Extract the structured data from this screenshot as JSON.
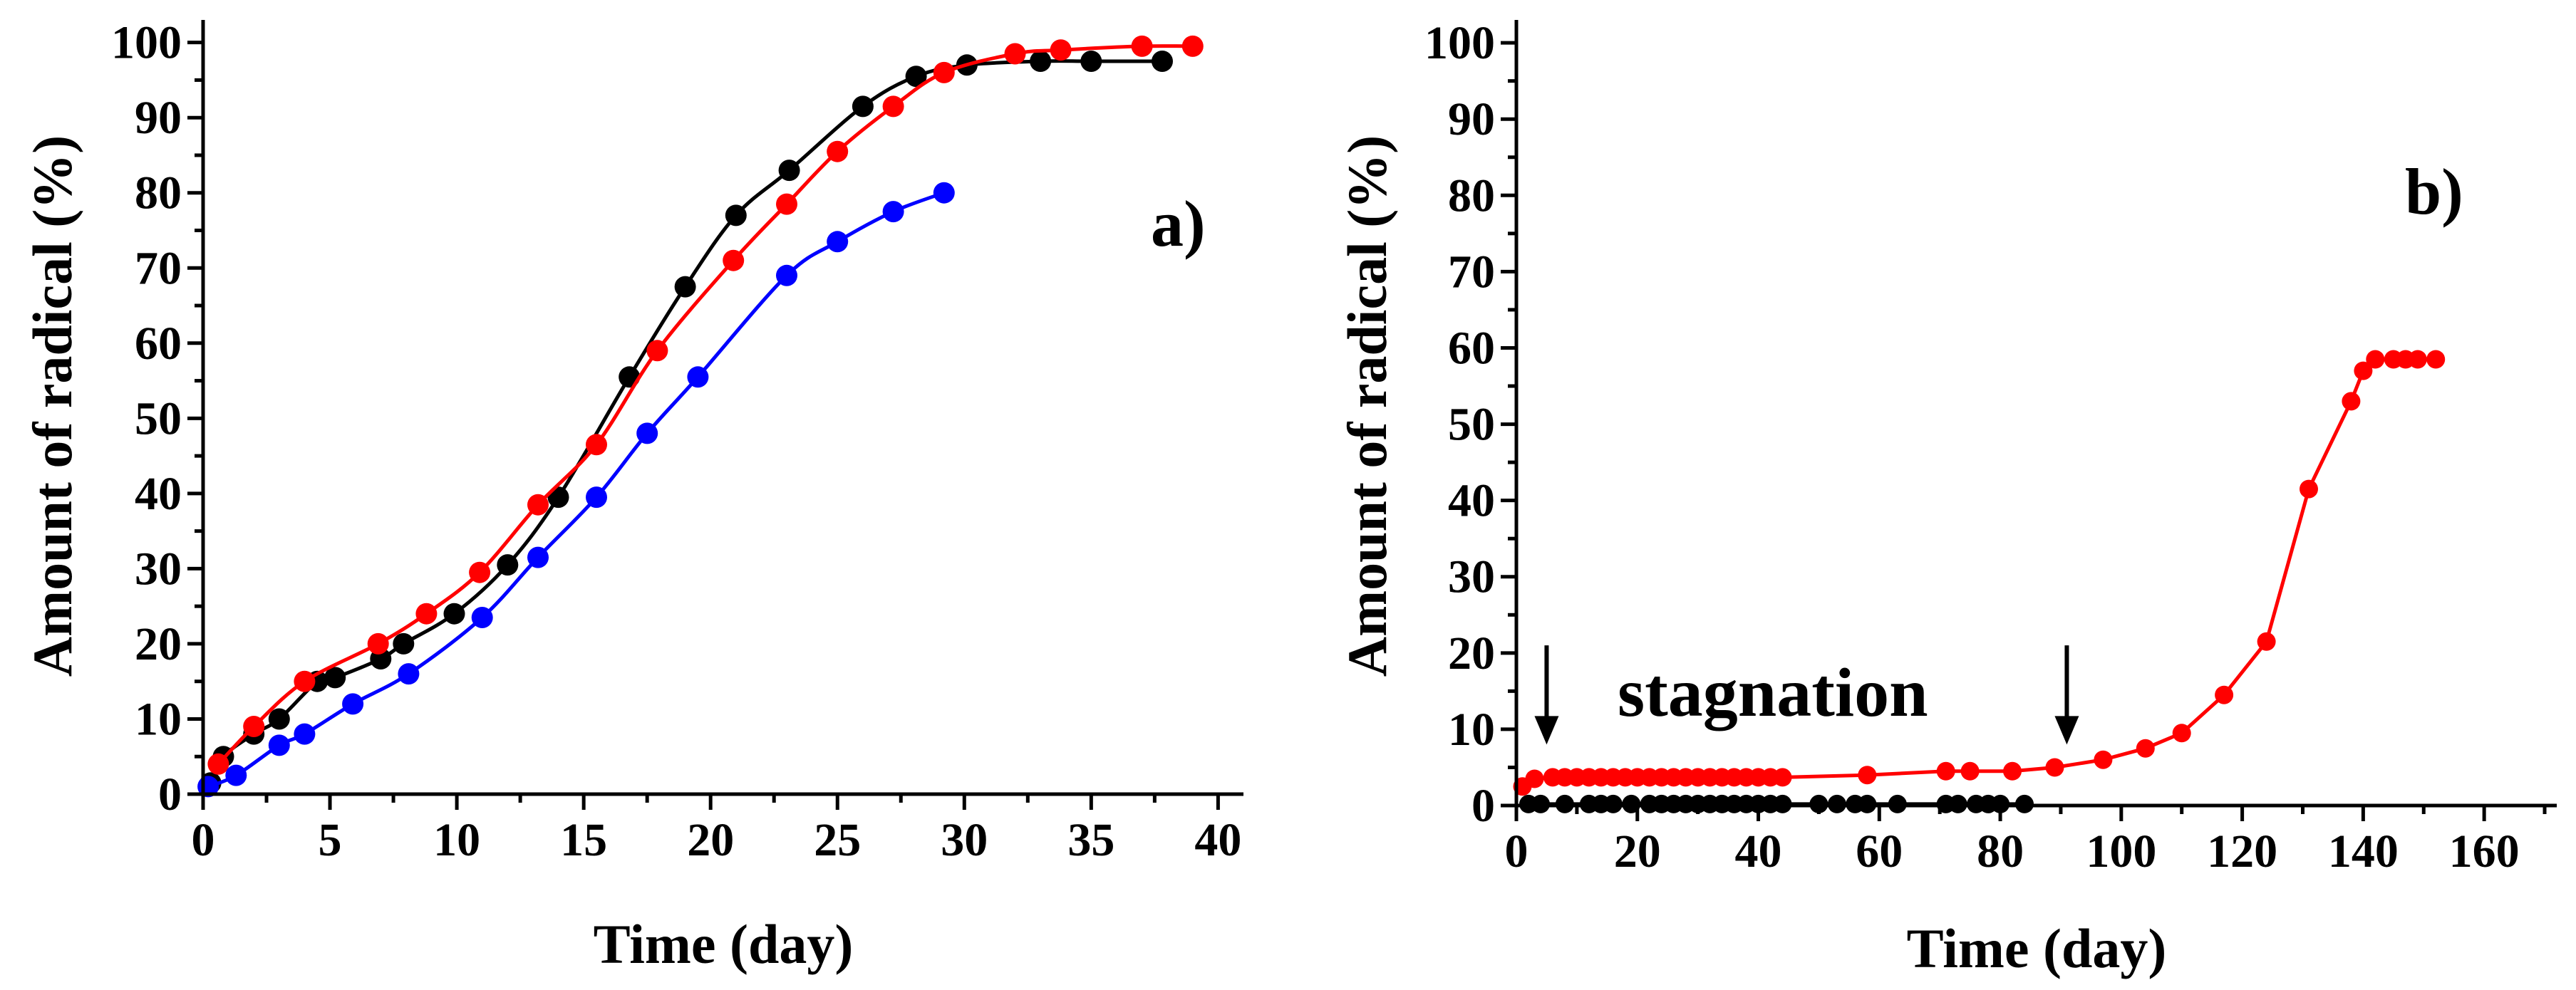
{
  "chart_data": [
    {
      "type": "line",
      "panel_label": "a)",
      "xlabel": "Time (day)",
      "ylabel": "Amount of radical (%)",
      "xlim": [
        0,
        41
      ],
      "ylim": [
        0,
        103
      ],
      "xticks": [
        0,
        5,
        10,
        15,
        20,
        25,
        30,
        35,
        40
      ],
      "yticks": [
        0,
        10,
        20,
        30,
        40,
        50,
        60,
        70,
        80,
        90,
        100
      ],
      "grid": false,
      "series": [
        {
          "name": "black",
          "color": "#000000",
          "x": [
            0.3,
            0.8,
            2.0,
            3.0,
            4.5,
            5.2,
            7.0,
            7.9,
            9.9,
            12.0,
            14.0,
            16.8,
            19.0,
            21.0,
            23.1,
            26.0,
            28.1,
            30.1,
            33.0,
            35.0,
            37.8
          ],
          "y": [
            1.5,
            5.0,
            8.0,
            10.0,
            15.0,
            15.5,
            18.0,
            20.0,
            24.0,
            30.5,
            39.5,
            55.5,
            67.5,
            77.0,
            83.0,
            91.5,
            95.5,
            97.0,
            97.5,
            97.5,
            97.5
          ]
        },
        {
          "name": "red",
          "color": "#ff0000",
          "x": [
            0.6,
            2.0,
            4.0,
            6.9,
            8.8,
            10.9,
            13.2,
            15.5,
            17.9,
            20.9,
            23.0,
            25.0,
            27.2,
            29.2,
            32.0,
            33.8,
            37.0,
            39.0
          ],
          "y": [
            4.0,
            9.0,
            15.0,
            20.0,
            24.0,
            29.5,
            38.5,
            46.5,
            59.0,
            71.0,
            78.5,
            85.5,
            91.5,
            96.0,
            98.5,
            99.0,
            99.5,
            99.5
          ]
        },
        {
          "name": "blue",
          "color": "#0000ff",
          "x": [
            0.2,
            1.3,
            3.0,
            4.0,
            5.9,
            8.1,
            11.0,
            13.2,
            15.5,
            17.5,
            19.5,
            23.0,
            25.0,
            27.2,
            29.2
          ],
          "y": [
            1.0,
            2.5,
            6.5,
            8.0,
            12.0,
            16.0,
            23.5,
            31.5,
            39.5,
            48.0,
            55.5,
            69.0,
            73.5,
            77.5,
            80.0
          ]
        }
      ]
    },
    {
      "type": "line",
      "panel_label": "b)",
      "xlabel": "Time (day)",
      "ylabel": "Amount of radical (%)",
      "xlim": [
        0,
        172
      ],
      "ylim": [
        0,
        103
      ],
      "xticks": [
        0,
        20,
        40,
        60,
        80,
        100,
        120,
        140,
        160
      ],
      "yticks": [
        0,
        10,
        20,
        30,
        40,
        50,
        60,
        70,
        80,
        90,
        100
      ],
      "grid": false,
      "annotations": [
        {
          "text": "stagnation",
          "x": 28,
          "y": 13
        }
      ],
      "arrows": [
        {
          "x": 5,
          "y_from": 21,
          "y_to": 8
        },
        {
          "x": 91,
          "y_from": 21,
          "y_to": 8
        }
      ],
      "series": [
        {
          "name": "red",
          "color": "#ff0000",
          "x": [
            1,
            3,
            6,
            8,
            10,
            12,
            14,
            16,
            18,
            20,
            22,
            24,
            26,
            28,
            30,
            32,
            34,
            36,
            38,
            40,
            42,
            44,
            58,
            71,
            75,
            82,
            89,
            97,
            104,
            110,
            117,
            124,
            131,
            138,
            140,
            142,
            145,
            147,
            149,
            152
          ],
          "y": [
            2.5,
            3.5,
            3.7,
            3.7,
            3.7,
            3.7,
            3.7,
            3.7,
            3.7,
            3.7,
            3.7,
            3.7,
            3.7,
            3.7,
            3.7,
            3.7,
            3.7,
            3.7,
            3.7,
            3.7,
            3.7,
            3.7,
            4.0,
            4.5,
            4.5,
            4.5,
            5.0,
            6.0,
            7.5,
            9.5,
            14.5,
            21.5,
            41.5,
            53.0,
            57.0,
            58.5,
            58.5,
            58.5,
            58.5,
            58.5
          ]
        },
        {
          "name": "black",
          "color": "#000000",
          "x": [
            2,
            4,
            8,
            12,
            14,
            16,
            19,
            22,
            24,
            26,
            28,
            30,
            32,
            34,
            36,
            38,
            40,
            42,
            44,
            50,
            53,
            56,
            58,
            63,
            71,
            73,
            76,
            78,
            80,
            84
          ],
          "y": [
            0.2,
            0.2,
            0.2,
            0.2,
            0.2,
            0.2,
            0.2,
            0.2,
            0.2,
            0.2,
            0.2,
            0.2,
            0.2,
            0.2,
            0.2,
            0.2,
            0.2,
            0.2,
            0.2,
            0.2,
            0.2,
            0.2,
            0.2,
            0.2,
            0.2,
            0.2,
            0.2,
            0.2,
            0.2,
            0.2
          ]
        }
      ]
    }
  ]
}
